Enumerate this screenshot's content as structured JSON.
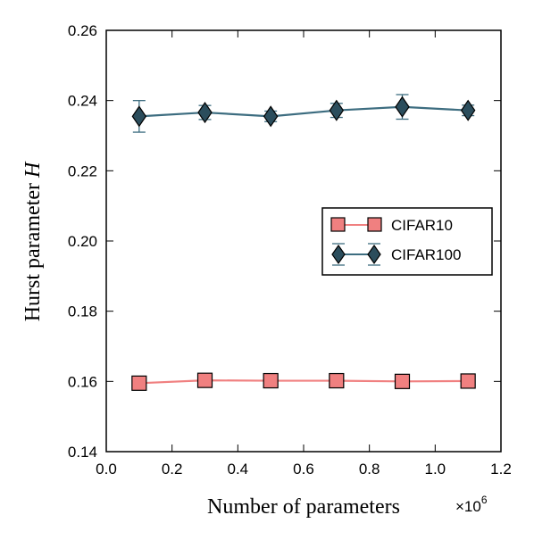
{
  "chart_data": {
    "type": "line",
    "xlabel": "Number of parameters",
    "ylabel": "Hurst parameter",
    "ylabel_symbol": "H",
    "x_multiplier": "×10",
    "x_multiplier_exp": "6",
    "xlim": [
      0.0,
      1.2
    ],
    "ylim": [
      0.14,
      0.26
    ],
    "x_ticks": [
      "0.0",
      "0.2",
      "0.4",
      "0.6",
      "0.8",
      "1.0",
      "1.2"
    ],
    "y_ticks": [
      "0.14",
      "0.16",
      "0.18",
      "0.20",
      "0.22",
      "0.24",
      "0.26"
    ],
    "x": [
      0.1,
      0.3,
      0.5,
      0.7,
      0.9,
      1.1
    ],
    "legend_position": "center-right",
    "grid": false,
    "series": [
      {
        "name": "CIFAR10",
        "marker": "square",
        "color": "#f08080",
        "line_color": "#f08080",
        "values": [
          0.1595,
          0.1603,
          0.1602,
          0.1602,
          0.16,
          0.1601
        ],
        "errors": [
          0.0003,
          0.0004,
          0.0003,
          0.0003,
          0.0003,
          0.0003
        ]
      },
      {
        "name": "CIFAR100",
        "marker": "diamond",
        "color": "#2b4d5c",
        "line_color": "#3d6d80",
        "values": [
          0.2355,
          0.2366,
          0.2355,
          0.2372,
          0.2382,
          0.2372
        ],
        "errors": [
          0.0045,
          0.002,
          0.0015,
          0.002,
          0.0035,
          0.0015
        ]
      }
    ]
  }
}
